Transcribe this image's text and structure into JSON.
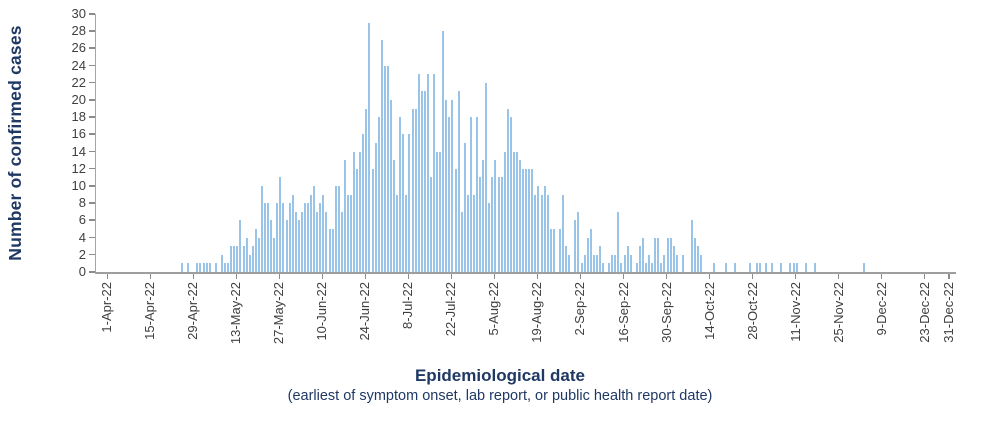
{
  "chart_data": {
    "type": "bar",
    "title": "",
    "ylabel": "Number of confirmed cases",
    "xlabel": "Epidemiological date",
    "xlabel_note": "(earliest of symptom onset, lab report, or public health report date)",
    "ylim": [
      0,
      30
    ],
    "yticks": [
      0,
      2,
      4,
      6,
      8,
      10,
      12,
      14,
      16,
      18,
      20,
      22,
      24,
      26,
      28,
      30
    ],
    "grid": false,
    "legend": "none",
    "x_axis_start_date": "1-Apr-22",
    "x_axis_end_date": "31-Dec-22",
    "x_unit": "day",
    "xticks": [
      {
        "label": "1-Apr-22",
        "day_index": 0
      },
      {
        "label": "15-Apr-22",
        "day_index": 14
      },
      {
        "label": "29-Apr-22",
        "day_index": 28
      },
      {
        "label": "13-May-22",
        "day_index": 42
      },
      {
        "label": "27-May-22",
        "day_index": 56
      },
      {
        "label": "10-Jun-22",
        "day_index": 70
      },
      {
        "label": "24-Jun-22",
        "day_index": 84
      },
      {
        "label": "8-Jul-22",
        "day_index": 98
      },
      {
        "label": "22-Jul-22",
        "day_index": 112
      },
      {
        "label": "5-Aug-22",
        "day_index": 126
      },
      {
        "label": "19-Aug-22",
        "day_index": 140
      },
      {
        "label": "2-Sep-22",
        "day_index": 154
      },
      {
        "label": "16-Sep-22",
        "day_index": 168
      },
      {
        "label": "30-Sep-22",
        "day_index": 182
      },
      {
        "label": "14-Oct-22",
        "day_index": 196
      },
      {
        "label": "28-Oct-22",
        "day_index": 210
      },
      {
        "label": "11-Nov-22",
        "day_index": 224
      },
      {
        "label": "25-Nov-22",
        "day_index": 238
      },
      {
        "label": "9-Dec-22",
        "day_index": 252
      },
      {
        "label": "23-Dec-22",
        "day_index": 266
      },
      {
        "label": "31-Dec-22",
        "day_index": 274
      }
    ],
    "daily_values_start": "1-Apr-22",
    "daily_values": [
      0,
      0,
      0,
      0,
      0,
      0,
      0,
      0,
      0,
      0,
      0,
      0,
      0,
      0,
      0,
      0,
      0,
      0,
      0,
      0,
      0,
      0,
      0,
      0,
      1,
      0,
      1,
      0,
      0,
      1,
      1,
      1,
      1,
      1,
      0,
      1,
      0,
      2,
      1,
      1,
      3,
      3,
      3,
      6,
      3,
      4,
      2,
      3,
      5,
      4,
      10,
      8,
      8,
      6,
      4,
      8,
      11,
      8,
      6,
      8,
      9,
      7,
      6,
      7,
      8,
      8,
      9,
      10,
      7,
      8,
      9,
      7,
      5,
      5,
      10,
      10,
      7,
      13,
      9,
      9,
      14,
      12,
      14,
      16,
      19,
      29,
      12,
      15,
      18,
      27,
      24,
      24,
      20,
      13,
      9,
      18,
      16,
      9,
      16,
      19,
      19,
      23,
      21,
      21,
      23,
      11,
      23,
      14,
      14,
      28,
      20,
      18,
      20,
      12,
      21,
      7,
      15,
      9,
      18,
      9,
      18,
      11,
      13,
      22,
      8,
      11,
      13,
      11,
      11,
      14,
      19,
      18,
      14,
      14,
      13,
      12,
      12,
      12,
      12,
      9,
      10,
      9,
      10,
      9,
      5,
      5,
      0,
      5,
      9,
      3,
      2,
      0,
      6,
      7,
      1,
      2,
      4,
      5,
      2,
      2,
      3,
      1,
      0,
      1,
      2,
      2,
      7,
      1,
      2,
      3,
      2,
      0,
      1,
      3,
      4,
      1,
      2,
      1,
      4,
      4,
      1,
      2,
      4,
      4,
      3,
      2,
      0,
      2,
      0,
      0,
      6,
      4,
      3,
      2,
      0,
      0,
      0,
      1,
      0,
      0,
      0,
      1,
      0,
      0,
      1,
      0,
      0,
      0,
      0,
      1,
      0,
      1,
      1,
      0,
      1,
      0,
      1,
      0,
      0,
      1,
      0,
      0,
      1,
      1,
      1,
      0,
      0,
      1,
      0,
      0,
      1,
      0,
      0,
      0,
      0,
      0,
      0,
      0,
      0,
      0,
      0,
      0,
      0,
      0,
      0,
      0,
      1,
      0,
      0,
      0,
      0,
      0,
      0,
      0,
      0,
      0,
      0,
      0,
      0,
      0,
      0,
      0,
      0,
      0,
      0,
      0,
      0,
      0,
      0,
      0,
      0,
      0,
      0,
      0,
      0
    ],
    "colors": {
      "bar_fill": "#b7d7f0",
      "bar_edge": "#5b9bd5",
      "axis_line": "#9e9e9e",
      "tick_mark": "#8c8c8c",
      "tick_label": "#3f3f3f",
      "axis_title": "#1f3864",
      "background": "#ffffff"
    }
  }
}
